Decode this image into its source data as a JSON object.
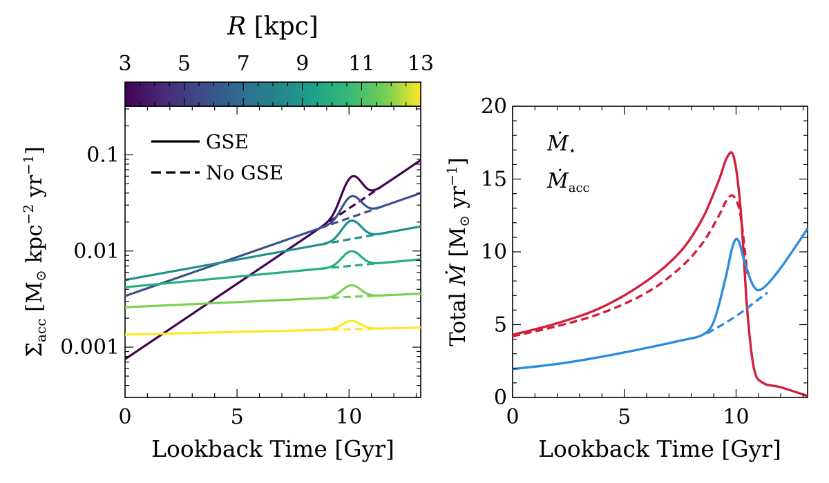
{
  "chart_data": [
    {
      "type": "line",
      "panel": "left",
      "xlabel": "Lookback Time [Gyr]",
      "ylabel": "Σ̇_acc [M⊙ kpc⁻² yr⁻¹]",
      "ylabel_parts": {
        "symbol": "Σ̇",
        "sub": "acc",
        "unit_a": " [M",
        "odot": "⊙",
        "unit_b": " kpc",
        "exp1": "−2",
        "unit_c": " yr",
        "exp2": "−1",
        "unit_d": "]"
      },
      "yscale": "log",
      "xlim": [
        0,
        13.2
      ],
      "ylim": [
        0.0003,
        0.32
      ],
      "xticks": [
        0,
        5,
        10
      ],
      "xtick_labels": [
        "0",
        "5",
        "10"
      ],
      "yticks": [
        0.001,
        0.01,
        0.1
      ],
      "ytick_labels": [
        "0.001",
        "0.01",
        "0.1"
      ],
      "colorbar": {
        "label_var": "R",
        "label_unit": " [kpc]",
        "range": [
          3,
          13
        ],
        "ticks": [
          "3",
          "5",
          "7",
          "9",
          "11",
          "13"
        ],
        "colormap": "viridis"
      },
      "legend": {
        "position": "top-left",
        "entries": [
          "GSE",
          "No GSE"
        ]
      },
      "burst": {
        "center": 10.1,
        "width": 0.55,
        "start": 8.7,
        "end": 11.4
      },
      "series": [
        {
          "R": 3,
          "color": "#440154",
          "x": [
            0,
            13.2
          ],
          "values": [
            0.00075,
            0.088
          ],
          "burst_factor": 1.05
        },
        {
          "R": 5,
          "color": "#3b528b",
          "x": [
            0,
            13.2
          ],
          "values": [
            0.0034,
            0.04
          ],
          "burst_factor": 0.65
        },
        {
          "R": 7,
          "color": "#21908c",
          "x": [
            0,
            13.2
          ],
          "values": [
            0.005,
            0.018
          ],
          "burst_factor": 0.55
        },
        {
          "R": 9,
          "color": "#27ad81",
          "x": [
            0,
            13.2
          ],
          "values": [
            0.0042,
            0.0082
          ],
          "burst_factor": 0.42
        },
        {
          "R": 11,
          "color": "#7ad151",
          "x": [
            0,
            13.2
          ],
          "values": [
            0.0026,
            0.0036
          ],
          "burst_factor": 0.32
        },
        {
          "R": 13,
          "color": "#fde725",
          "x": [
            0,
            13.2
          ],
          "values": [
            0.00135,
            0.0016
          ],
          "burst_factor": 0.22
        }
      ]
    },
    {
      "type": "line",
      "panel": "right",
      "xlabel": "Lookback Time [Gyr]",
      "ylabel": "Total Ṁ [M⊙ yr⁻¹]",
      "ylabel_parts": {
        "pre": "Total ",
        "symbol": "Ṁ",
        "unit_a": " [M",
        "odot": "⊙",
        "unit_b": " yr",
        "exp": "−1",
        "unit_c": "]"
      },
      "xlim": [
        0,
        13.2
      ],
      "ylim": [
        0,
        20
      ],
      "xticks": [
        0,
        5,
        10
      ],
      "xtick_labels": [
        "0",
        "5",
        "10"
      ],
      "yticks": [
        0,
        5,
        10,
        15,
        20
      ],
      "ytick_labels": [
        "0",
        "5",
        "10",
        "15",
        "20"
      ],
      "legend": {
        "position": "top-left"
      },
      "series": [
        {
          "name": "Ṁ⋆",
          "label_symbol": "Ṁ",
          "label_sub": "⋆",
          "color": "#d21f3c",
          "style": "solid",
          "x": [
            0,
            2,
            4,
            6,
            7.5,
            8.5,
            9.2,
            9.6,
            9.9,
            10.2,
            10.5,
            10.8,
            11.2,
            12,
            13.2
          ],
          "values": [
            4.3,
            5.1,
            6.2,
            8.0,
            10.0,
            12.3,
            14.8,
            16.5,
            16.5,
            13.0,
            6.0,
            2.0,
            1.0,
            0.7,
            0.1
          ]
        },
        {
          "name": "Ṁ⋆ (No GSE)",
          "color": "#d21f3c",
          "style": "dashed",
          "x": [
            0,
            2,
            4,
            6,
            7.5,
            8.5,
            9.2,
            9.6,
            9.9,
            10.2,
            10.5
          ],
          "values": [
            4.2,
            4.9,
            5.8,
            7.2,
            8.9,
            10.6,
            12.4,
            13.6,
            13.8,
            12.5,
            8.5
          ]
        },
        {
          "name": "Ṁacc",
          "label_symbol": "Ṁ",
          "label_sub": "acc",
          "color": "#2b8ce0",
          "style": "solid",
          "x": [
            0,
            2,
            4,
            6,
            7.5,
            8.5,
            9.0,
            9.5,
            9.85,
            10.1,
            10.4,
            10.8,
            11.2,
            12,
            13.2
          ],
          "values": [
            1.95,
            2.3,
            2.8,
            3.4,
            3.9,
            4.3,
            5.2,
            8.0,
            10.4,
            10.8,
            9.2,
            7.6,
            7.5,
            8.9,
            11.6
          ]
        },
        {
          "name": "Ṁacc (No GSE)",
          "color": "#2b8ce0",
          "style": "dashed",
          "x": [
            8.7,
            9.5,
            10.2,
            10.8,
            11.4
          ],
          "values": [
            4.4,
            5.1,
            5.8,
            6.5,
            7.2
          ]
        }
      ]
    }
  ]
}
